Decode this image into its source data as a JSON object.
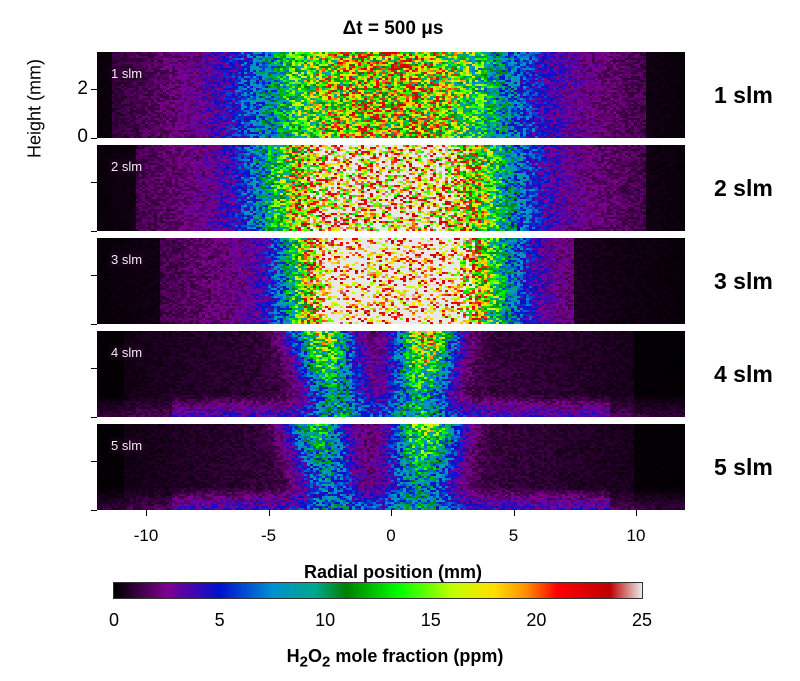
{
  "chart_data": {
    "type": "heatmap",
    "title": "Δt = 500 μs",
    "xlabel": "Radial position (mm)",
    "ylabel": "Height (mm)",
    "xlim": [
      -12,
      12
    ],
    "ylim": [
      0,
      3.5
    ],
    "x_ticks": [
      "-10",
      "-5",
      "0",
      "5",
      "10"
    ],
    "x_tick_values": [
      -10,
      -5,
      0,
      5,
      10
    ],
    "y_ticks": [
      "0",
      "2"
    ],
    "y_tick_values": [
      0,
      2
    ],
    "colorbar": {
      "label_main": "H",
      "sub1": "2",
      "mid": "O",
      "sub2": "2",
      "label_rest": " mole fraction (ppm)",
      "range": [
        0,
        25
      ],
      "ticks": [
        "0",
        "5",
        "10",
        "15",
        "20",
        "25"
      ],
      "tick_values": [
        0,
        5,
        10,
        15,
        20,
        25
      ],
      "stops": [
        [
          0,
          "#000000"
        ],
        [
          2.5,
          "#800090"
        ],
        [
          5,
          "#0010d0"
        ],
        [
          7.5,
          "#0090d0"
        ],
        [
          9.5,
          "#00a890"
        ],
        [
          11,
          "#008000"
        ],
        [
          13.5,
          "#00ff00"
        ],
        [
          16,
          "#c0ff00"
        ],
        [
          18,
          "#ffe000"
        ],
        [
          19.5,
          "#ff9000"
        ],
        [
          21,
          "#ff0000"
        ],
        [
          23.5,
          "#c00000"
        ],
        [
          25,
          "#e8e8e8"
        ]
      ]
    },
    "panels": [
      {
        "label": "1 slm",
        "side_label": "1 slm",
        "background_ppm": 5,
        "edges_mm": [
          -11.5,
          10.5
        ],
        "lobes": [
          {
            "center_mm": -2.5,
            "width_mm": 2.2,
            "peak_ppm": 10
          },
          {
            "center_mm": 2,
            "width_mm": 2.2,
            "peak_ppm": 10
          }
        ]
      },
      {
        "label": "2 slm",
        "side_label": "2 slm",
        "background_ppm": 5,
        "edges_mm": [
          -10.5,
          10.5
        ],
        "lobes": [
          {
            "center_mm": -2.5,
            "width_mm": 1.8,
            "peak_ppm": 17
          },
          {
            "center_mm": 1.8,
            "width_mm": 2,
            "peak_ppm": 18
          }
        ]
      },
      {
        "label": "3 slm",
        "side_label": "3 slm",
        "background_ppm": 4,
        "edges_mm": [
          -9.5,
          7.5
        ],
        "lobes": [
          {
            "center_mm": -2,
            "width_mm": 1.4,
            "peak_ppm": 22
          },
          {
            "center_mm": 1.8,
            "width_mm": 1.8,
            "peak_ppm": 24
          }
        ]
      },
      {
        "label": "4 slm",
        "side_label": "4 slm",
        "background_ppm": 1.5,
        "edges_mm": [
          -11,
          10
        ],
        "lobes": [
          {
            "center_mm": -2.5,
            "width_mm": 0.8,
            "peak_ppm": 14
          },
          {
            "center_mm": 1.3,
            "width_mm": 0.8,
            "peak_ppm": 16
          }
        ]
      },
      {
        "label": "5 slm",
        "side_label": "5 slm",
        "background_ppm": 1.5,
        "edges_mm": [
          -11,
          10
        ],
        "lobes": [
          {
            "center_mm": -2.7,
            "width_mm": 0.8,
            "peak_ppm": 10
          },
          {
            "center_mm": 1.3,
            "width_mm": 0.9,
            "peak_ppm": 13
          }
        ]
      }
    ]
  }
}
